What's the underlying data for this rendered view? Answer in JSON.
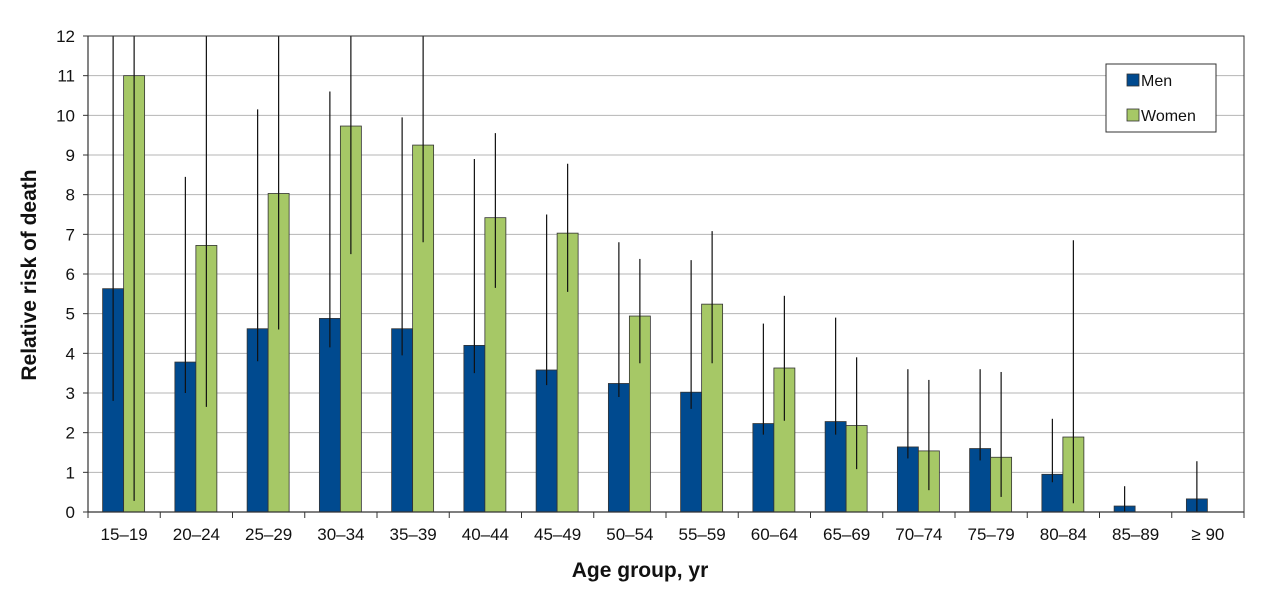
{
  "chart_data": {
    "type": "bar",
    "title": "",
    "xlabel": "Age group, yr",
    "ylabel": "Relative risk of death",
    "ylim": [
      0,
      12
    ],
    "yticks": [
      "0",
      "1",
      "2",
      "3",
      "4",
      "5",
      "6",
      "7",
      "8",
      "9",
      "10",
      "11",
      "12"
    ],
    "grid": "horizontal",
    "legend_position": "top-right",
    "categories": [
      "15–19",
      "20–24",
      "25–29",
      "30–34",
      "35–39",
      "40–44",
      "45–49",
      "50–54",
      "55–59",
      "60–64",
      "65–69",
      "70–74",
      "75–79",
      "80–84",
      "85–89",
      "≥ 90"
    ],
    "series": [
      {
        "name": "Men",
        "color": "#004a8f",
        "values": [
          5.63,
          3.78,
          4.62,
          4.88,
          4.62,
          4.2,
          3.58,
          3.24,
          3.02,
          2.23,
          2.28,
          1.64,
          1.6,
          0.95,
          0.15,
          0.33
        ],
        "error_low": [
          2.8,
          3.0,
          3.8,
          4.15,
          3.95,
          3.5,
          3.2,
          2.9,
          2.6,
          1.95,
          1.95,
          1.35,
          1.3,
          0.75,
          0.0,
          0.0
        ],
        "error_high": [
          12,
          8.45,
          10.15,
          10.6,
          9.95,
          8.9,
          7.5,
          6.8,
          6.35,
          4.75,
          4.9,
          3.6,
          3.6,
          2.35,
          0.65,
          1.28
        ]
      },
      {
        "name": "Women",
        "color": "#a6c866",
        "values": [
          11.0,
          6.72,
          8.03,
          9.73,
          9.25,
          7.42,
          7.03,
          4.94,
          5.24,
          3.63,
          2.18,
          1.54,
          1.38,
          1.89,
          null,
          null
        ],
        "error_low": [
          0.28,
          2.65,
          4.6,
          6.5,
          6.8,
          5.65,
          5.55,
          3.75,
          3.75,
          2.3,
          1.08,
          0.55,
          0.38,
          0.22,
          null,
          null
        ],
        "error_high": [
          12,
          12,
          12,
          12,
          12,
          9.55,
          8.78,
          6.38,
          7.08,
          5.45,
          3.9,
          3.33,
          3.53,
          6.85,
          null,
          null
        ]
      }
    ]
  }
}
